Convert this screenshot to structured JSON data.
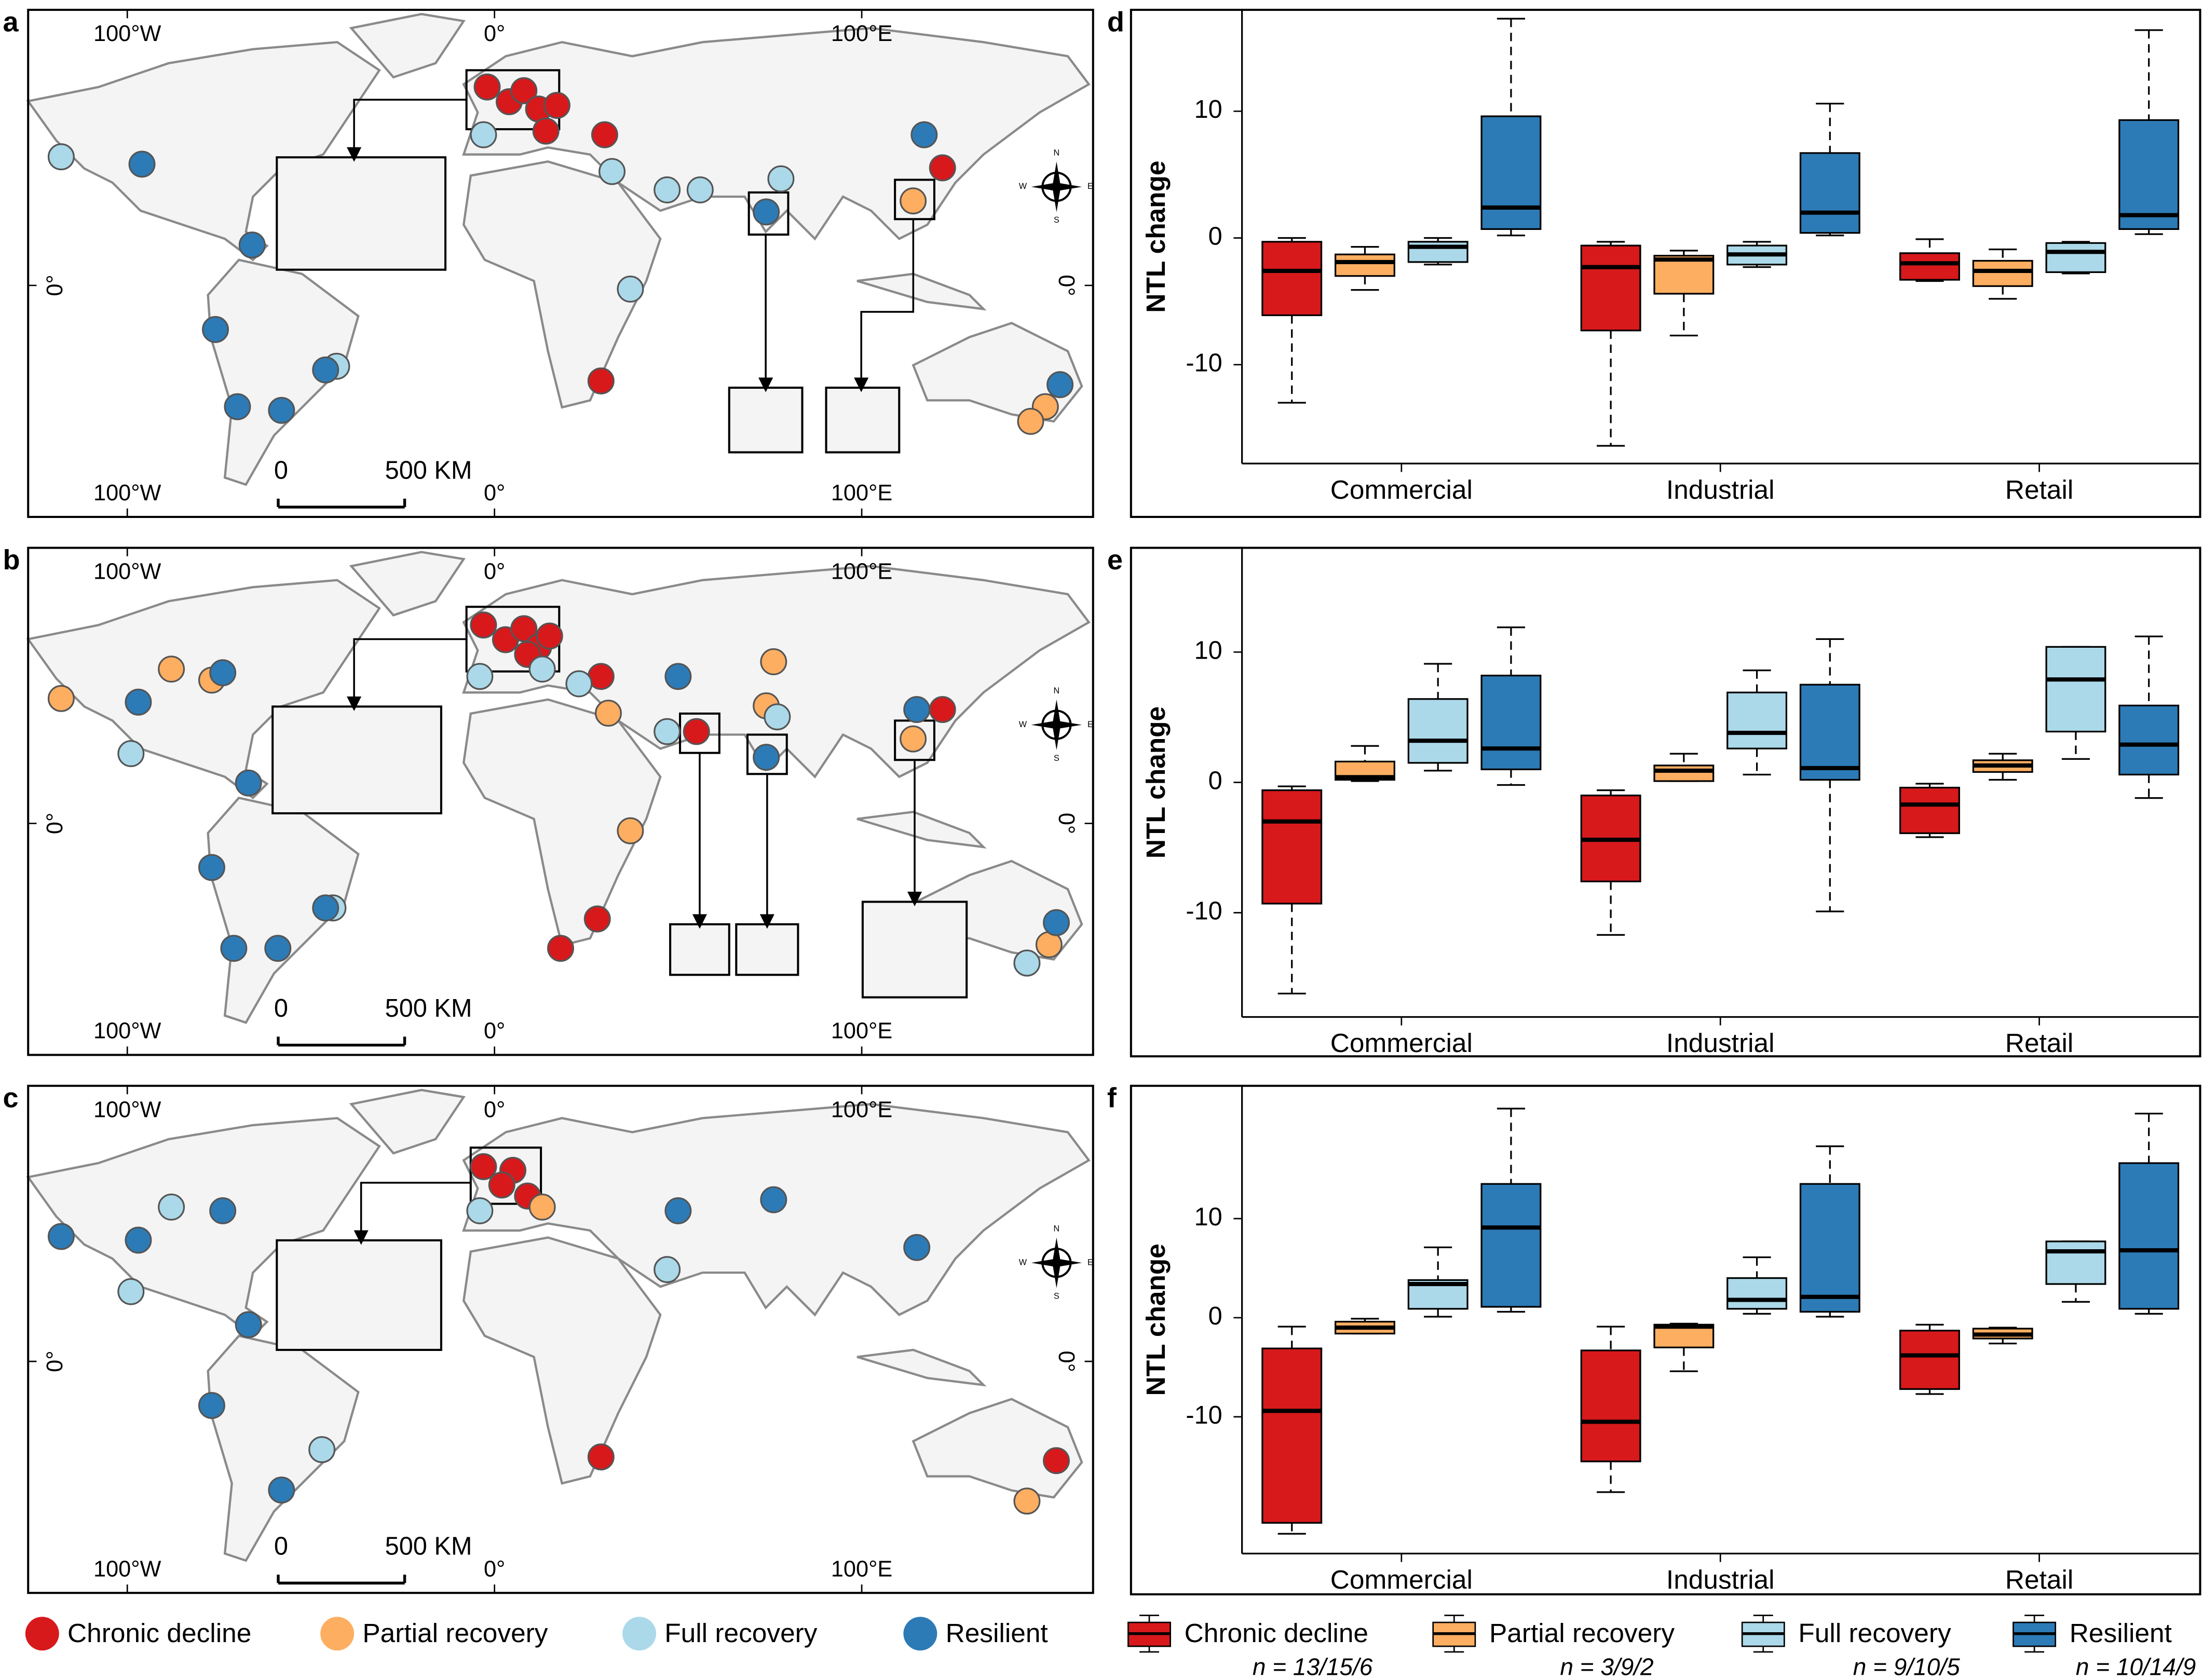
{
  "chart_data": [
    {
      "type": "map",
      "panel_labels": [
        "a",
        "b",
        "c"
      ],
      "xlim": [
        -127,
        163
      ],
      "ylim": [
        -63,
        75
      ],
      "xticks": [
        {
          "value": -100,
          "label": "100°W"
        },
        {
          "value": 0,
          "label": "0°"
        },
        {
          "value": 100,
          "label": "100°E"
        }
      ],
      "yticks": [
        {
          "value": 0,
          "label": "0°"
        }
      ],
      "scale_bar": {
        "start": "0",
        "end": "500 KM"
      },
      "compass": [
        "N",
        "E",
        "S",
        "W"
      ],
      "legend": [
        {
          "name": "Chronic decline",
          "color": "#d7191c"
        },
        {
          "name": "Partial recovery",
          "color": "#fdae61"
        },
        {
          "name": "Full recovery",
          "color": "#abd9e9"
        },
        {
          "name": "Resilient",
          "color": "#2c7bb6"
        }
      ],
      "panels": [
        {
          "series": [
            {
              "x": [
                -2,
                4,
                8,
                12,
                17,
                14,
                30,
                29,
                122
              ],
              "y": [
                54,
                50,
                53,
                48,
                49,
                42,
                41,
                -26,
                32
              ]
            },
            {
              "x": [
                114,
                150,
                146
              ],
              "y": [
                23,
                -33,
                -37
              ]
            },
            {
              "x": [
                -118,
                -43,
                -3,
                32,
                47,
                56,
                78,
                37
              ],
              "y": [
                35,
                -22,
                41,
                31,
                26,
                26,
                29,
                -1
              ]
            },
            {
              "x": [
                -96,
                -66,
                -76,
                -46,
                -70,
                -58,
                74,
                117,
                154
              ],
              "y": [
                33,
                11,
                -12,
                -23,
                -33,
                -34,
                20,
                41,
                -27
              ]
            }
          ]
        },
        {
          "series": [
            {
              "x": [
                -3,
                3,
                8,
                12,
                9,
                15,
                29,
                55,
                28,
                18,
                122
              ],
              "y": [
                54,
                50,
                53,
                48,
                46,
                51,
                40,
                25,
                -26,
                -34,
                31
              ]
            },
            {
              "x": [
                -118,
                -88,
                -77,
                76,
                74,
                31,
                37,
                114,
                151
              ],
              "y": [
                34,
                42,
                39,
                44,
                32,
                30,
                -2,
                23,
                -33
              ]
            },
            {
              "x": [
                -99,
                -44,
                -4,
                13,
                23,
                77,
                47,
                145
              ],
              "y": [
                19,
                -23,
                40,
                42,
                38,
                29,
                25,
                -38
              ]
            },
            {
              "x": [
                -74,
                -97,
                -67,
                -77,
                -71,
                -59,
                -46,
                50,
                74,
                115,
                153
              ],
              "y": [
                41,
                33,
                11,
                -12,
                -34,
                -34,
                -23,
                40,
                18,
                31,
                -27
              ]
            }
          ]
        },
        {
          "series": [
            {
              "x": [
                -3,
                5,
                2,
                9,
                29,
                153
              ],
              "y": [
                53,
                52,
                48,
                45,
                -26,
                -27
              ]
            },
            {
              "x": [
                13,
                145
              ],
              "y": [
                42,
                -38
              ]
            },
            {
              "x": [
                -88,
                -99,
                -47,
                -4,
                47
              ],
              "y": [
                42,
                19,
                -24,
                41,
                25
              ]
            },
            {
              "x": [
                -118,
                -74,
                -97,
                -67,
                -77,
                -58,
                50,
                76,
                115
              ],
              "y": [
                34,
                41,
                33,
                10,
                -12,
                -35,
                41,
                44,
                31
              ]
            }
          ]
        }
      ]
    },
    {
      "type": "box",
      "ylabel": "NTL change",
      "categories": [
        "Commercial",
        "Industrial",
        "Retail"
      ],
      "legend": [
        {
          "name": "Chronic decline",
          "color": "#d7191c",
          "n_label": "n = 13/15/6"
        },
        {
          "name": "Partial recovery",
          "color": "#fdae61",
          "n_label": "n = 3/9/2"
        },
        {
          "name": "Full recovery",
          "color": "#abd9e9",
          "n_label": "n = 9/10/5"
        },
        {
          "name": "Resilient",
          "color": "#2c7bb6",
          "n_label": "n = 10/14/9"
        }
      ],
      "panels": [
        {
          "label": "d",
          "ylim": [
            -17.8,
            18
          ],
          "yticks": [
            -10,
            0,
            10
          ],
          "series": [
            [
              [
                -13,
                -6.1,
                -2.6,
                -0.3,
                0
              ],
              [
                -16.4,
                -7.3,
                -2.3,
                -0.6,
                -0.3
              ],
              [
                -3.4,
                -3.3,
                -2.0,
                -1.2,
                -0.1
              ]
            ],
            [
              [
                -4.1,
                -3.0,
                -1.9,
                -1.3,
                -0.7
              ],
              [
                -7.7,
                -4.4,
                -1.7,
                -1.4,
                -1.0
              ],
              [
                -4.8,
                -3.8,
                -2.6,
                -1.8,
                -0.9
              ]
            ],
            [
              [
                -2.1,
                -1.9,
                -0.7,
                -0.3,
                0
              ],
              [
                -2.3,
                -2.1,
                -1.3,
                -0.6,
                -0.3
              ],
              [
                -2.8,
                -2.7,
                -1.1,
                -0.4,
                -0.3
              ]
            ],
            [
              [
                0.2,
                0.7,
                2.4,
                9.6,
                17.3
              ],
              [
                0.2,
                0.4,
                2.0,
                6.7,
                10.6
              ],
              [
                0.3,
                0.7,
                1.8,
                9.3,
                16.4
              ]
            ]
          ]
        },
        {
          "label": "e",
          "ylim": [
            -18,
            18
          ],
          "yticks": [
            -10,
            0,
            10
          ],
          "series": [
            [
              [
                -16.2,
                -9.3,
                -3.0,
                -0.6,
                -0.3
              ],
              [
                -11.7,
                -7.6,
                -4.4,
                -1.0,
                -0.6
              ],
              [
                -4.2,
                -3.9,
                -1.7,
                -0.4,
                -0.1
              ]
            ],
            [
              [
                0.1,
                0.2,
                0.4,
                1.6,
                2.8
              ],
              [
                0.1,
                0.1,
                0.9,
                1.3,
                2.2
              ],
              [
                0.2,
                0.8,
                1.3,
                1.7,
                2.2
              ]
            ],
            [
              [
                0.9,
                1.5,
                3.2,
                6.4,
                9.1
              ],
              [
                0.6,
                2.6,
                3.8,
                6.9,
                8.6
              ],
              [
                1.8,
                3.9,
                7.9,
                10.4,
                10.4
              ]
            ],
            [
              [
                -0.2,
                1.0,
                2.6,
                8.2,
                11.9
              ],
              [
                -9.9,
                0.2,
                1.1,
                7.5,
                11.0
              ],
              [
                -1.2,
                0.6,
                2.9,
                5.9,
                11.2
              ]
            ]
          ]
        },
        {
          "label": "f",
          "ylim": [
            -23.8,
            23.4
          ],
          "yticks": [
            -10,
            0,
            10
          ],
          "series": [
            [
              [
                -21.8,
                -20.7,
                -9.4,
                -3.1,
                -0.9
              ],
              [
                -17.6,
                -14.5,
                -10.5,
                -3.3,
                -0.9
              ],
              [
                -7.7,
                -7.2,
                -3.8,
                -1.3,
                -0.7
              ]
            ],
            [
              [
                -1.6,
                -1.6,
                -1.0,
                -0.4,
                -0.1
              ],
              [
                -5.4,
                -3.0,
                -0.9,
                -0.7,
                -0.6
              ],
              [
                -2.6,
                -2.1,
                -1.7,
                -1.1,
                -1.0
              ]
            ],
            [
              [
                0.1,
                0.9,
                3.4,
                3.8,
                7.1
              ],
              [
                0.4,
                0.9,
                1.8,
                4.0,
                6.1
              ],
              [
                1.6,
                3.4,
                6.7,
                7.7,
                7.7
              ]
            ],
            [
              [
                0.6,
                1.1,
                9.1,
                13.5,
                21.1
              ],
              [
                0.1,
                0.6,
                2.1,
                13.5,
                17.3
              ],
              [
                0.4,
                0.9,
                6.8,
                15.6,
                20.6
              ]
            ]
          ]
        }
      ]
    }
  ]
}
